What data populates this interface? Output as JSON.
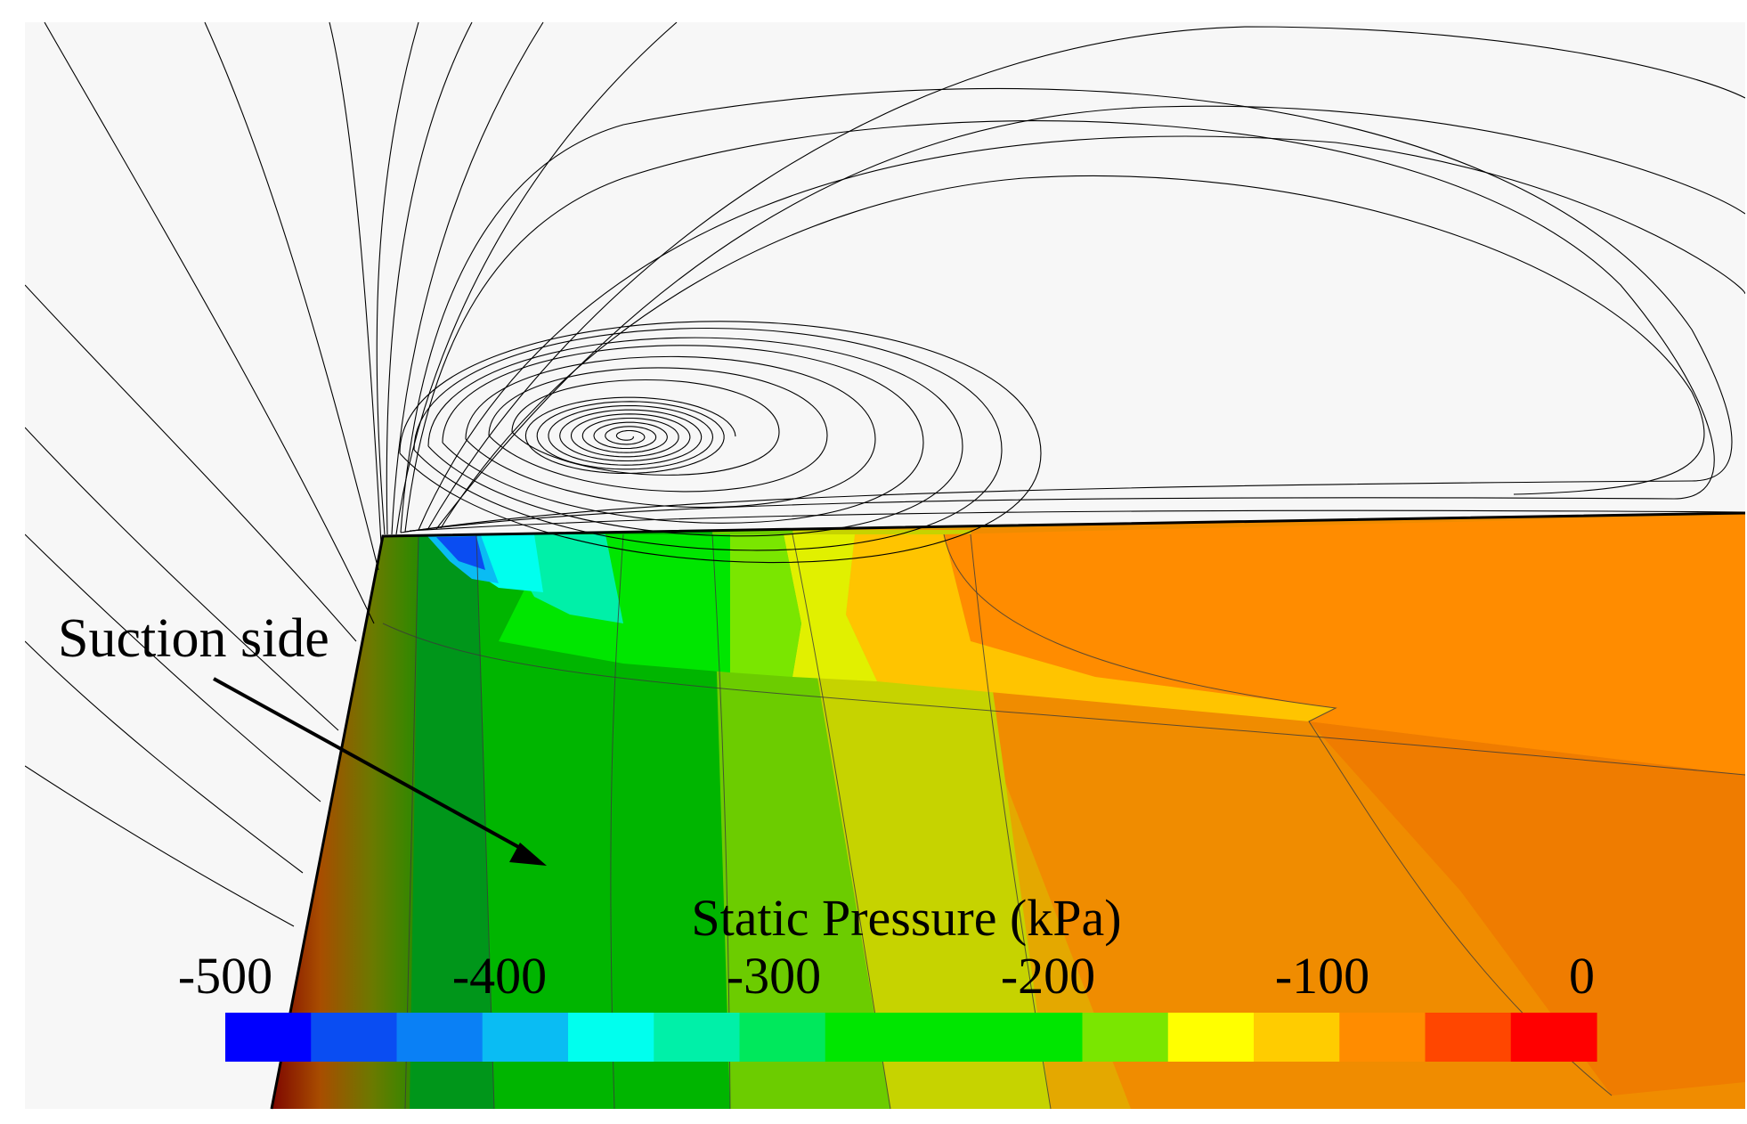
{
  "annotation": {
    "label": "Suction side"
  },
  "colorbar": {
    "title": "Static Pressure (kPa)",
    "ticks": [
      "-500",
      "-400",
      "-300",
      "-200",
      "-100",
      "0"
    ],
    "min": -500,
    "max": 0,
    "levels": 16,
    "colors": [
      "#0000ff",
      "#0a4df2",
      "#0a80f5",
      "#0abcf3",
      "#00ffee",
      "#00f0a8",
      "#00e85c",
      "#00e600",
      "#00e600",
      "#00e600",
      "#7ae600",
      "#ffff00",
      "#ffcc00",
      "#ff8c00",
      "#ff4600",
      "#ff0000"
    ]
  },
  "colors": {
    "background": "#f7f7f7",
    "streamlines": "#000000"
  }
}
